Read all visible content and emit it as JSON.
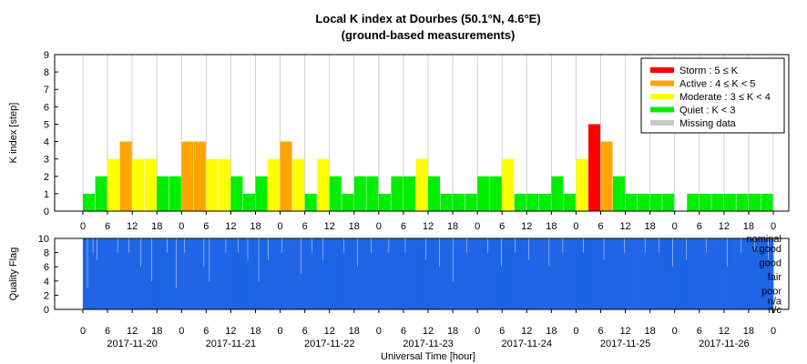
{
  "title": "Local K index at Dourbes (50.1°N, 4.6°E)",
  "subtitle": "(ground-based measurements)",
  "xlabel": "Universal Time [hour]",
  "colors": {
    "storm": "#ff0000",
    "active": "#ffa500",
    "moderate": "#ffff00",
    "quiet": "#00ee00",
    "missing": "#c8c8c8",
    "quality": "#1e64e6",
    "grid": "#d0d0d0"
  },
  "legend": [
    {
      "label": "Storm : 5 ≤ K",
      "color": "#ff0000"
    },
    {
      "label": "Active : 4 ≤ K < 5",
      "color": "#ffa500"
    },
    {
      "label": "Moderate : 3 ≤ K < 4",
      "color": "#ffff00"
    },
    {
      "label": "Quiet : K < 3",
      "color": "#00ee00"
    },
    {
      "label": "Missing data",
      "color": "#c8c8c8"
    }
  ],
  "quality_labels": [
    "nominal",
    "v.good",
    "good",
    "fair",
    "poor",
    "n/a",
    "n/c"
  ],
  "hour_ticks": [
    "0",
    "6",
    "12",
    "18",
    "0",
    "6",
    "12",
    "18",
    "0",
    "6",
    "12",
    "18",
    "0",
    "6",
    "12",
    "18",
    "0",
    "6",
    "12",
    "18",
    "0",
    "6",
    "12",
    "18",
    "0",
    "6",
    "12",
    "18",
    "0"
  ],
  "date_labels": [
    "2017-11-20",
    "2017-11-21",
    "2017-11-22",
    "2017-11-23",
    "2017-11-24",
    "2017-11-25",
    "2017-11-26"
  ],
  "chart_data": [
    {
      "type": "bar",
      "title": "Local K index at Dourbes (50.1°N, 4.6°E)",
      "ylabel": "K index [step]",
      "ylim": [
        0,
        9
      ],
      "yticks": [
        0,
        1,
        2,
        3,
        4,
        5,
        6,
        7,
        8,
        9
      ],
      "x_unit": "3-hour intervals from 2017-11-20 00:00 UT",
      "k_values": [
        1,
        2,
        3,
        4,
        3,
        3,
        2,
        2,
        4,
        4,
        3,
        3,
        2,
        1,
        2,
        3,
        4,
        3,
        1,
        3,
        2,
        1,
        2,
        2,
        1,
        2,
        2,
        3,
        2,
        1,
        1,
        1,
        2,
        2,
        3,
        1,
        1,
        1,
        2,
        1,
        3,
        5,
        4,
        2,
        1,
        1,
        1,
        1,
        0,
        1,
        1,
        1,
        1,
        1,
        1,
        1
      ],
      "grid": true
    },
    {
      "type": "bar",
      "ylabel": "Quality Flag",
      "ylim": [
        0,
        10
      ],
      "yticks": [
        0,
        2,
        4,
        6,
        8,
        10
      ],
      "grid": true
    }
  ]
}
